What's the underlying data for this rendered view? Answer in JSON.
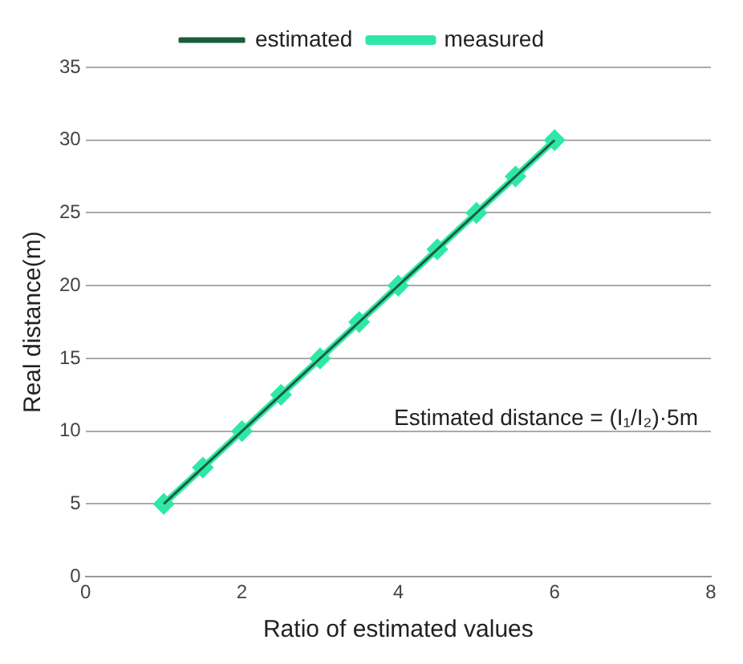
{
  "chart_data": {
    "type": "line",
    "xlabel": "Ratio of estimated values",
    "ylabel": "Real distance(m)",
    "annotations": [
      "Estimated distance = (I₁/I₂)·5m"
    ],
    "xlim": [
      0,
      8
    ],
    "xticks": [
      0,
      2,
      4,
      6,
      8
    ],
    "ylim": [
      0,
      35
    ],
    "yticks": [
      0,
      5,
      10,
      15,
      20,
      25,
      30,
      35
    ],
    "grid": "y",
    "legend": "top",
    "series": [
      {
        "name": "measured",
        "color": "#2ee8a8",
        "marker": "diamond",
        "x": [
          1,
          1.5,
          2,
          2.5,
          3,
          3.5,
          4,
          4.5,
          5,
          5.5,
          6
        ],
        "values": [
          5,
          7.5,
          10,
          12.5,
          15,
          17.5,
          20,
          22.5,
          25,
          27.5,
          30
        ]
      },
      {
        "name": "estimated",
        "color": "#1a5e3a",
        "marker": "none",
        "x": [
          1,
          6
        ],
        "values": [
          5,
          30
        ]
      }
    ]
  }
}
